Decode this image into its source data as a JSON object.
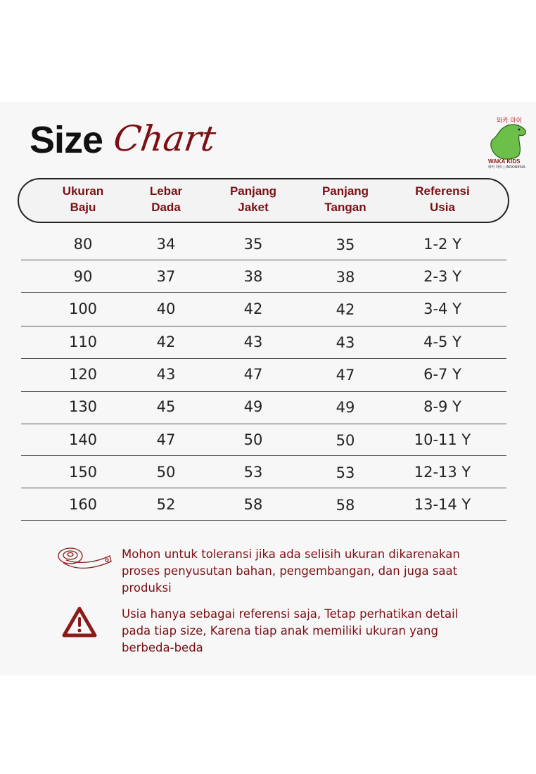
{
  "title": {
    "word1": "Size",
    "word2": "Chart"
  },
  "logo": {
    "text": "WAKA KIDS",
    "korean": "와카 아이"
  },
  "headers": [
    "Ukuran\nBaju",
    "Lebar\nDada",
    "Panjang\nJaket",
    "Panjang\nTangan",
    "Referensi\nUsia"
  ],
  "rows": [
    [
      "80",
      "34",
      "35",
      "35",
      "1-2 Y"
    ],
    [
      "90",
      "37",
      "38",
      "38",
      "2-3 Y"
    ],
    [
      "100",
      "40",
      "42",
      "42",
      "3-4 Y"
    ],
    [
      "110",
      "42",
      "43",
      "43",
      "4-5 Y"
    ],
    [
      "120",
      "43",
      "47",
      "47",
      "6-7 Y"
    ],
    [
      "130",
      "45",
      "49",
      "49",
      "8-9 Y"
    ],
    [
      "140",
      "47",
      "50",
      "50",
      "10-11 Y"
    ],
    [
      "150",
      "50",
      "53",
      "53",
      "12-13 Y"
    ],
    [
      "160",
      "52",
      "58",
      "58",
      "13-14 Y"
    ]
  ],
  "notes": [
    {
      "icon": "measuring-tape-icon",
      "text": "Mohon untuk toleransi jika ada selisih ukuran dikarenakan proses penyusutan bahan, pengembangan, dan juga saat produksi"
    },
    {
      "icon": "warning-icon",
      "text": "Usia hanya sebagai referensi saja, Tetap perhatikan detail pada tiap size, Karena tiap anak memiliki ukuran yang berbeda-beda"
    }
  ],
  "colors": {
    "accent": "#7a0f14",
    "text": "#222222"
  }
}
